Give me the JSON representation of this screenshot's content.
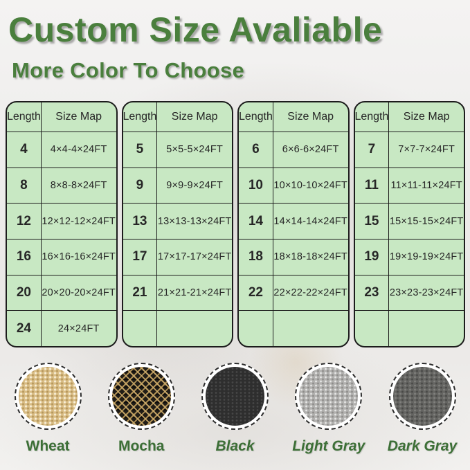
{
  "page": {
    "title": "Custom Size Avaliable",
    "subtitle": "More Color To Choose",
    "title_color": "#4a7f3d",
    "table_bg_color": "#c8e8c3",
    "table_border_color": "#1c1c1c",
    "label_color": "#3c6f36"
  },
  "tables": [
    {
      "headers": [
        "Length",
        "Size Map"
      ],
      "rows": [
        [
          "4",
          "4×4-4×24FT"
        ],
        [
          "8",
          "8×8-8×24FT"
        ],
        [
          "12",
          "12×12-12×24FT"
        ],
        [
          "16",
          "16×16-16×24FT"
        ],
        [
          "20",
          "20×20-20×24FT"
        ],
        [
          "24",
          "24×24FT"
        ]
      ]
    },
    {
      "headers": [
        "Length",
        "Size Map"
      ],
      "rows": [
        [
          "5",
          "5×5-5×24FT"
        ],
        [
          "9",
          "9×9-9×24FT"
        ],
        [
          "13",
          "13×13-13×24FT"
        ],
        [
          "17",
          "17×17-17×24FT"
        ],
        [
          "21",
          "21×21-21×24FT"
        ],
        [
          "",
          ""
        ]
      ]
    },
    {
      "headers": [
        "Length",
        "Size Map"
      ],
      "rows": [
        [
          "6",
          "6×6-6×24FT"
        ],
        [
          "10",
          "10×10-10×24FT"
        ],
        [
          "14",
          "14×14-14×24FT"
        ],
        [
          "18",
          "18×18-18×24FT"
        ],
        [
          "22",
          "22×22-22×24FT"
        ],
        [
          "",
          ""
        ]
      ]
    },
    {
      "headers": [
        "Length",
        "Size Map"
      ],
      "rows": [
        [
          "7",
          "7×7-7×24FT"
        ],
        [
          "11",
          "11×11-11×24FT"
        ],
        [
          "15",
          "15×15-15×24FT"
        ],
        [
          "19",
          "19×19-19×24FT"
        ],
        [
          "23",
          "23×23-23×24FT"
        ],
        [
          "",
          ""
        ]
      ]
    }
  ],
  "colors": [
    {
      "name": "Wheat",
      "swatch_hex": "#d9bd85",
      "italic": false
    },
    {
      "name": "Mocha",
      "swatch_hex": "#211d17",
      "italic": false
    },
    {
      "name": "Black",
      "swatch_hex": "#2e2e2e",
      "italic": true
    },
    {
      "name": "Light Gray",
      "swatch_hex": "#b2b1af",
      "italic": true
    },
    {
      "name": "Dark Gray",
      "swatch_hex": "#656562",
      "italic": true
    }
  ]
}
